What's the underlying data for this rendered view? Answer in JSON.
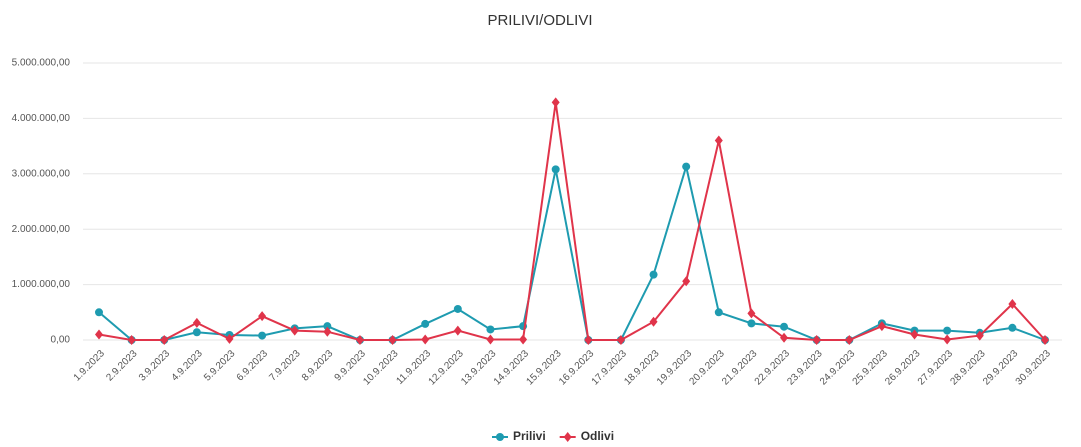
{
  "chart_data": {
    "type": "line",
    "title": "PRILIVI/ODLIVI",
    "categories": [
      "1.9.2023",
      "2.9.2023",
      "3.9.2023",
      "4.9.2023",
      "5.9.2023",
      "6.9.2023",
      "7.9.2023",
      "8.9.2023",
      "9.9.2023",
      "10.9.2023",
      "11.9.2023",
      "12.9.2023",
      "13.9.2023",
      "14.9.2023",
      "15.9.2023",
      "16.9.2023",
      "17.9.2023",
      "18.9.2023",
      "19.9.2023",
      "20.9.2023",
      "21.9.2023",
      "22.9.2023",
      "23.9.2023",
      "24.9.2023",
      "25.9.2023",
      "26.9.2023",
      "27.9.2023",
      "28.9.2023",
      "29.9.2023",
      "30.9.2023"
    ],
    "series": [
      {
        "name": "Prilivi",
        "color": "#1e9bb0",
        "values": [
          500000,
          0,
          0,
          140000,
          90000,
          80000,
          210000,
          250000,
          0,
          0,
          290000,
          560000,
          190000,
          250000,
          3080000,
          0,
          0,
          1180000,
          3130000,
          500000,
          300000,
          240000,
          0,
          0,
          300000,
          170000,
          170000,
          130000,
          220000,
          0
        ]
      },
      {
        "name": "Odlivi",
        "color": "#e0344a",
        "values": [
          100000,
          0,
          0,
          310000,
          20000,
          430000,
          170000,
          150000,
          0,
          0,
          10000,
          170000,
          10000,
          10000,
          4290000,
          0,
          0,
          330000,
          1060000,
          3600000,
          480000,
          40000,
          0,
          0,
          250000,
          100000,
          10000,
          80000,
          650000,
          0
        ]
      }
    ],
    "ylim": [
      0,
      5000000
    ],
    "yticks": [
      {
        "value": 0,
        "label": "0,00"
      },
      {
        "value": 1000000,
        "label": "1.000.000,00"
      },
      {
        "value": 2000000,
        "label": "2.000.000,00"
      },
      {
        "value": 3000000,
        "label": "3.000.000,00"
      },
      {
        "value": 4000000,
        "label": "4.000.000,00"
      },
      {
        "value": 5000000,
        "label": "5.000.000,00"
      }
    ],
    "grid": true,
    "legend": "bottom"
  }
}
